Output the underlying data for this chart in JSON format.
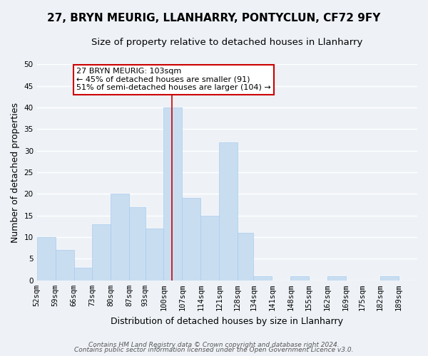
{
  "title": "27, BRYN MEURIG, LLANHARRY, PONTYCLUN, CF72 9FY",
  "subtitle": "Size of property relative to detached houses in Llanharry",
  "xlabel": "Distribution of detached houses by size in Llanharry",
  "ylabel": "Number of detached properties",
  "footer_line1": "Contains HM Land Registry data © Crown copyright and database right 2024.",
  "footer_line2": "Contains public sector information licensed under the Open Government Licence v3.0.",
  "bins": [
    52,
    59,
    66,
    73,
    80,
    87,
    93,
    100,
    107,
    114,
    121,
    128,
    134,
    141,
    148,
    155,
    162,
    169,
    175,
    182,
    189,
    196
  ],
  "counts": [
    10,
    7,
    3,
    13,
    20,
    17,
    12,
    40,
    19,
    15,
    32,
    11,
    1,
    0,
    1,
    0,
    1,
    0,
    0,
    1,
    0
  ],
  "bar_color": "#c8ddf0",
  "bar_edge_color": "#aaccee",
  "vline_x": 103,
  "vline_color": "#cc0000",
  "annotation_text": "27 BRYN MEURIG: 103sqm\n← 45% of detached houses are smaller (91)\n51% of semi-detached houses are larger (104) →",
  "annotation_box_color": "#ffffff",
  "annotation_box_edge_color": "#cc0000",
  "ylim": [
    0,
    50
  ],
  "yticks": [
    0,
    5,
    10,
    15,
    20,
    25,
    30,
    35,
    40,
    45,
    50
  ],
  "bin_labels": [
    "52sqm",
    "59sqm",
    "66sqm",
    "73sqm",
    "80sqm",
    "87sqm",
    "93sqm",
    "100sqm",
    "107sqm",
    "114sqm",
    "121sqm",
    "128sqm",
    "134sqm",
    "141sqm",
    "148sqm",
    "155sqm",
    "162sqm",
    "169sqm",
    "175sqm",
    "182sqm",
    "189sqm"
  ],
  "background_color": "#eef2f7",
  "grid_color": "#ffffff",
  "title_fontsize": 11,
  "subtitle_fontsize": 9.5,
  "axis_label_fontsize": 9,
  "tick_fontsize": 7.5,
  "annotation_fontsize": 8,
  "footer_fontsize": 6.5
}
